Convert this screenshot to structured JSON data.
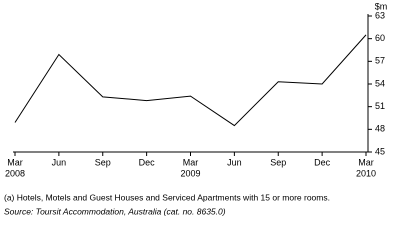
{
  "chart_data": {
    "type": "line",
    "categories": [
      "Mar",
      "Jun",
      "Sep",
      "Dec",
      "Mar",
      "Jun",
      "Sep",
      "Dec",
      "Mar"
    ],
    "category_years": [
      "2008",
      null,
      null,
      null,
      "2009",
      null,
      null,
      null,
      "2010"
    ],
    "series": [
      {
        "color": "#000000",
        "values": [
          48.9,
          57.9,
          52.3,
          51.8,
          52.4,
          48.5,
          54.3,
          54.0,
          60.5
        ]
      }
    ],
    "y_unit": "$m",
    "ylim": [
      45,
      63
    ],
    "yticks": [
      45,
      48,
      51,
      54,
      57,
      60,
      63
    ],
    "footnotes": [
      "(a) Hotels, Motels and Guest Houses and Serviced Apartments with 15 or more rooms.",
      "Source: Toursit Accommodation, Australia (cat. no. 8635.0)"
    ]
  }
}
